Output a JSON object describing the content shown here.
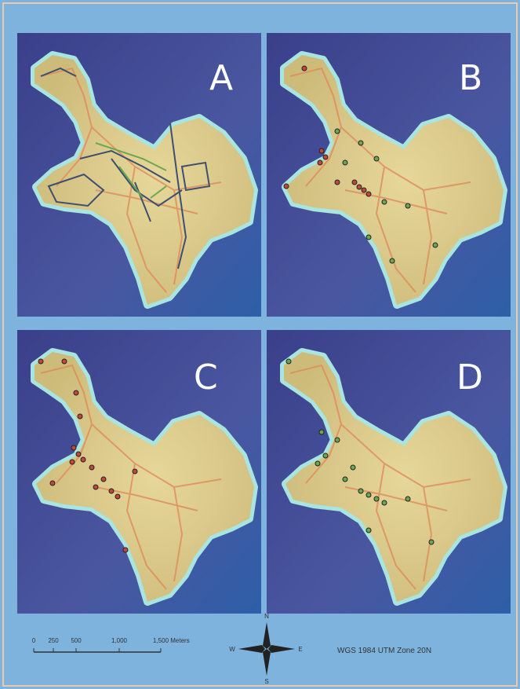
{
  "panels": [
    {
      "label": "A"
    },
    {
      "label": "B"
    },
    {
      "label": "C"
    },
    {
      "label": "D"
    }
  ],
  "scale_bar": {
    "labels": [
      "0",
      "250",
      "500",
      "1,000",
      "1,500 Meters"
    ]
  },
  "compass": {
    "north": "N",
    "south": "S",
    "east": "E",
    "west": "W"
  },
  "projection": "WGS 1984 UTM Zone 20N"
}
